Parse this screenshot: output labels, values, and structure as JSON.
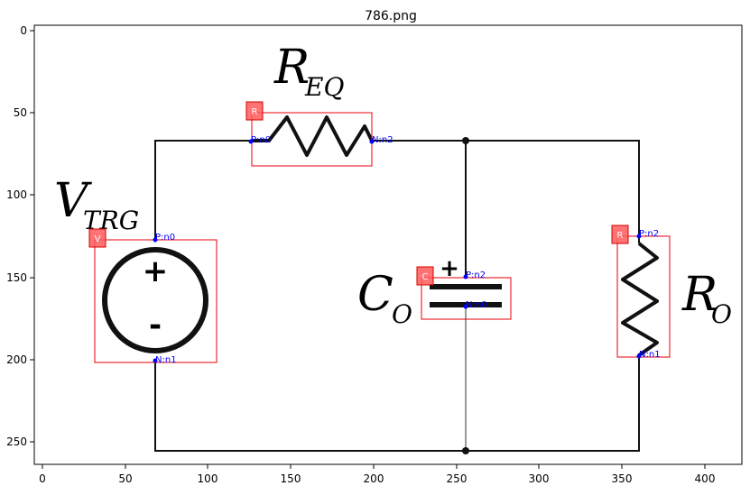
{
  "figure": {
    "title": "786.png",
    "x_ticks": [
      "0",
      "50",
      "100",
      "150",
      "200",
      "250",
      "300",
      "350",
      "400"
    ],
    "y_ticks": [
      "0",
      "50",
      "100",
      "150",
      "200",
      "250"
    ]
  },
  "symbols": {
    "req_main": "R",
    "req_sub": "EQ",
    "vtrg_main": "V",
    "vtrg_sub": "TRG",
    "co_main": "C",
    "co_sub": "O",
    "ro_main": "R",
    "ro_sub": "O",
    "plus": "+",
    "minus": "-",
    "cap_plus": "+"
  },
  "components": [
    {
      "id": "resistor-req",
      "type": "R",
      "pins": [
        "P:n0",
        "N:n2"
      ]
    },
    {
      "id": "voltage-source",
      "type": "V",
      "pins": [
        "P:n0",
        "N:n1"
      ]
    },
    {
      "id": "capacitor",
      "type": "C",
      "pins": [
        "P:n2",
        "N:n0"
      ]
    },
    {
      "id": "resistor-ro",
      "type": "R",
      "pins": [
        "P:n2",
        "N:n1"
      ]
    }
  ],
  "colors": {
    "box": "#e8000b",
    "badge": "#ff5a5a",
    "pin": "#0000ff",
    "wire": "#111111"
  }
}
